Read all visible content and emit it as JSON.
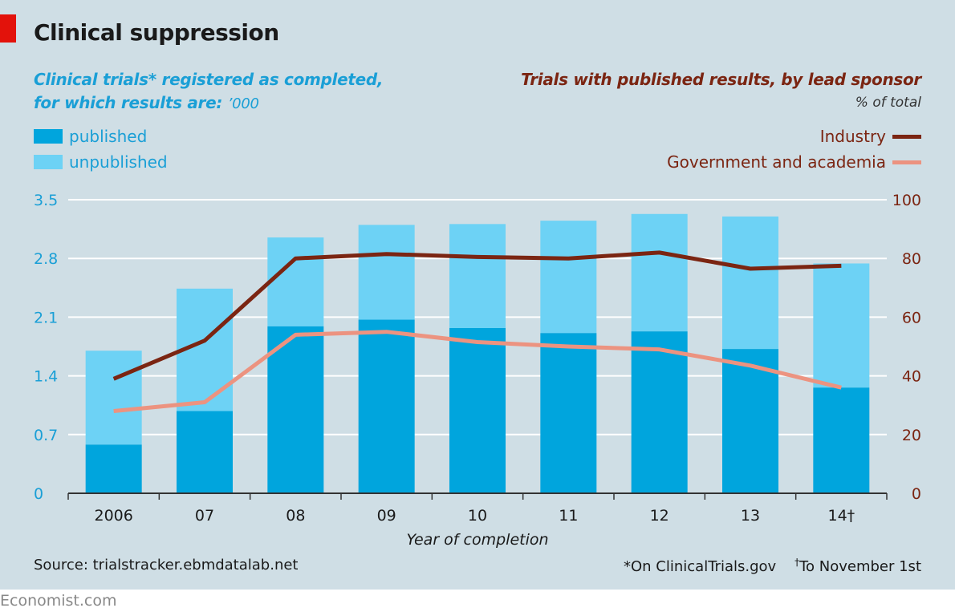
{
  "title": "Clinical suppression",
  "subtitle_left": {
    "line1": "Clinical trials* registered as completed,",
    "line2": "for which results are:",
    "units": "’000"
  },
  "subtitle_right": {
    "line1": "Trials with published results, by lead sponsor",
    "units": "% of total"
  },
  "legend_left": {
    "published": "published",
    "unpublished": "unpublished"
  },
  "legend_right": {
    "industry": "Industry",
    "government": "Government and academia"
  },
  "x_axis_title": "Year of completion",
  "footer": {
    "source": "Source: trialstracker.ebmdatalab.net",
    "note1": "*On ClinicalTrials.gov",
    "note2_mark": "†",
    "note2": "To November 1st"
  },
  "brand": "Economist.com",
  "colors": {
    "published": "#00a5dd",
    "unpublished": "#6dd2f5",
    "industry": "#7b2512",
    "government": "#ec9380",
    "axis_left_text": "#1a9fd6",
    "axis_right_text": "#7b2512",
    "background": "#cfdee5"
  },
  "chart_data": {
    "type": "bar",
    "categories": [
      "2006",
      "07",
      "08",
      "09",
      "10",
      "11",
      "12",
      "13",
      "14†"
    ],
    "series": [
      {
        "name": "published",
        "values": [
          0.58,
          0.98,
          1.99,
          2.07,
          1.97,
          1.91,
          1.93,
          1.72,
          1.26
        ]
      },
      {
        "name": "unpublished",
        "values": [
          1.12,
          1.46,
          1.06,
          1.13,
          1.24,
          1.34,
          1.4,
          1.58,
          1.48
        ]
      },
      {
        "name": "Industry",
        "values": [
          39,
          52,
          80,
          81.5,
          80.5,
          80,
          82,
          76.5,
          77.5
        ]
      },
      {
        "name": "Government and academia",
        "values": [
          28,
          31,
          54,
          55,
          51.5,
          50,
          49,
          43.5,
          36
        ]
      }
    ],
    "left_axis": {
      "ticks": [
        "0",
        "0.7",
        "1.4",
        "2.1",
        "2.8",
        "3.5"
      ],
      "ylim": [
        0,
        3.5
      ]
    },
    "right_axis": {
      "ticks": [
        "0",
        "20",
        "40",
        "60",
        "80",
        "100"
      ],
      "ylim": [
        0,
        100
      ]
    },
    "xlabel": "Year of completion",
    "grid": true
  }
}
